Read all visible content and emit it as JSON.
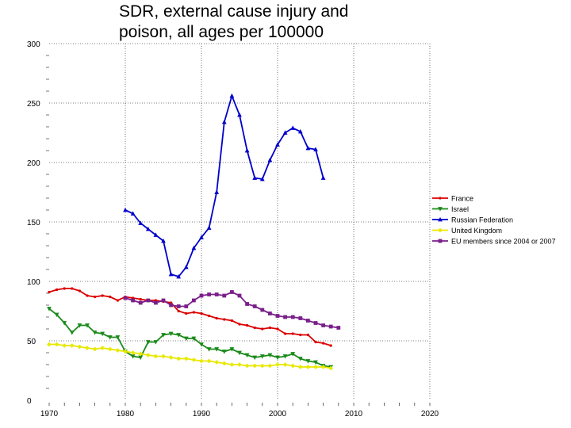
{
  "chart_data": {
    "type": "line",
    "title_lines": [
      "SDR, external cause injury and",
      "poison, all ages per 100000"
    ],
    "xlabel": "",
    "ylabel": "",
    "xlim": [
      1970,
      2020
    ],
    "ylim": [
      0,
      300
    ],
    "x_ticks": [
      1970,
      1980,
      1990,
      2000,
      2010,
      2020
    ],
    "y_ticks": [
      0,
      50,
      100,
      150,
      200,
      250,
      300
    ],
    "grid": true,
    "legend_position": "right",
    "series": [
      {
        "name": "France",
        "color": "#dd0000",
        "marker": "circle",
        "x": [
          1970,
          1971,
          1972,
          1973,
          1974,
          1975,
          1976,
          1977,
          1978,
          1979,
          1980,
          1981,
          1982,
          1983,
          1984,
          1985,
          1986,
          1987,
          1988,
          1989,
          1990,
          1991,
          1992,
          1993,
          1994,
          1995,
          1996,
          1997,
          1998,
          1999,
          2000,
          2001,
          2002,
          2003,
          2004,
          2005,
          2006,
          2007
        ],
        "values": [
          91,
          93,
          94,
          94,
          92,
          88,
          87,
          88,
          87,
          84,
          87,
          86,
          85,
          84,
          84,
          83,
          82,
          75,
          73,
          74,
          73,
          71,
          69,
          68,
          67,
          64,
          63,
          61,
          60,
          61,
          60,
          56,
          56,
          55,
          55,
          49,
          48,
          46
        ]
      },
      {
        "name": "Israel",
        "color": "#1a8a1a",
        "marker": "triangle-down",
        "x": [
          1970,
          1971,
          1972,
          1973,
          1974,
          1975,
          1976,
          1977,
          1978,
          1979,
          1980,
          1981,
          1982,
          1983,
          1984,
          1985,
          1986,
          1987,
          1988,
          1989,
          1990,
          1991,
          1992,
          1993,
          1994,
          1995,
          1996,
          1997,
          1998,
          1999,
          2000,
          2001,
          2002,
          2003,
          2004,
          2005,
          2006,
          2007
        ],
        "values": [
          77,
          72,
          65,
          57,
          63,
          63,
          57,
          56,
          53,
          53,
          41,
          37,
          36,
          49,
          49,
          55,
          56,
          55,
          52,
          52,
          47,
          43,
          43,
          41,
          43,
          40,
          38,
          36,
          37,
          38,
          36,
          37,
          39,
          35,
          33,
          32,
          29,
          28
        ]
      },
      {
        "name": "Russian Federation",
        "color": "#0000cc",
        "marker": "triangle-up",
        "x": [
          1980,
          1981,
          1982,
          1983,
          1984,
          1985,
          1986,
          1987,
          1988,
          1989,
          1990,
          1991,
          1992,
          1993,
          1994,
          1995,
          1996,
          1997,
          1998,
          1999,
          2000,
          2001,
          2002,
          2003,
          2004,
          2005,
          2006
        ],
        "values": [
          160,
          157,
          149,
          144,
          139,
          134,
          106,
          104,
          112,
          128,
          137,
          145,
          175,
          234,
          256,
          240,
          210,
          187,
          186,
          202,
          215,
          225,
          229,
          226,
          212,
          211,
          187
        ]
      },
      {
        "name": "United Kingdom",
        "color": "#e8e800",
        "marker": "diamond",
        "x": [
          1970,
          1971,
          1972,
          1973,
          1974,
          1975,
          1976,
          1977,
          1978,
          1979,
          1980,
          1981,
          1982,
          1983,
          1984,
          1985,
          1986,
          1987,
          1988,
          1989,
          1990,
          1991,
          1992,
          1993,
          1994,
          1995,
          1996,
          1997,
          1998,
          1999,
          2000,
          2001,
          2002,
          2003,
          2004,
          2005,
          2006,
          2007
        ],
        "values": [
          47,
          47,
          46,
          46,
          45,
          44,
          43,
          44,
          43,
          42,
          41,
          40,
          39,
          38,
          37,
          37,
          36,
          35,
          35,
          34,
          33,
          33,
          32,
          31,
          30,
          30,
          29,
          29,
          29,
          29,
          30,
          30,
          29,
          28,
          28,
          28,
          28,
          27
        ]
      },
      {
        "name": "EU members since 2004 or 2007",
        "color": "#7a1f8a",
        "marker": "square",
        "x": [
          1980,
          1981,
          1982,
          1983,
          1984,
          1985,
          1986,
          1987,
          1988,
          1989,
          1990,
          1991,
          1992,
          1993,
          1994,
          1995,
          1996,
          1997,
          1998,
          1999,
          2000,
          2001,
          2002,
          2003,
          2004,
          2005,
          2006,
          2007,
          2008
        ],
        "values": [
          86,
          84,
          82,
          84,
          82,
          84,
          80,
          79,
          79,
          84,
          88,
          89,
          89,
          88,
          91,
          88,
          81,
          79,
          76,
          73,
          71,
          70,
          70,
          69,
          67,
          65,
          63,
          62,
          61
        ]
      }
    ]
  }
}
